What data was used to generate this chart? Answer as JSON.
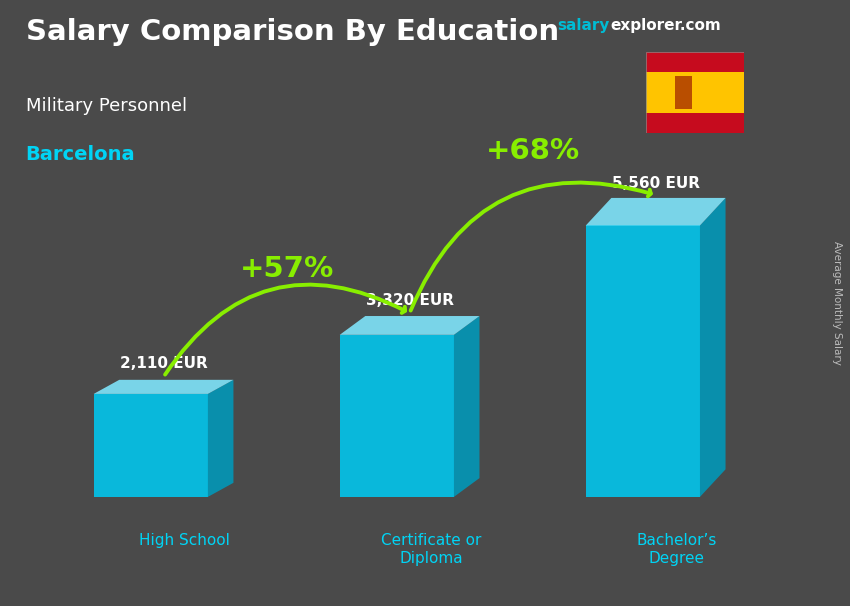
{
  "title_main": "Salary Comparison By Education",
  "subtitle1": "Military Personnel",
  "subtitle2": "Barcelona",
  "categories": [
    "High School",
    "Certificate or\nDiploma",
    "Bachelor’s\nDegree"
  ],
  "values": [
    2110,
    3320,
    5560
  ],
  "value_labels": [
    "2,110 EUR",
    "3,320 EUR",
    "5,560 EUR"
  ],
  "pct_labels": [
    "+57%",
    "+68%"
  ],
  "bar_front_color": "#00c8f0",
  "bar_top_color": "#80e8ff",
  "bar_side_color": "#0099bb",
  "ylabel_text": "Average Monthly Salary",
  "watermark_salary": "salary",
  "watermark_rest": "explorer.com",
  "watermark_color1": "#00bcd4",
  "watermark_color2": "#ffffff",
  "title_color": "#ffffff",
  "subtitle1_color": "#ffffff",
  "subtitle2_color": "#00d4f5",
  "category_color": "#00d4f5",
  "value_label_color": "#ffffff",
  "pct_color": "#88ee00",
  "bg_color": "#4a4a4a",
  "arrow_color": "#88ee00",
  "flag_red": "#c60b1e",
  "flag_yellow": "#ffc400"
}
